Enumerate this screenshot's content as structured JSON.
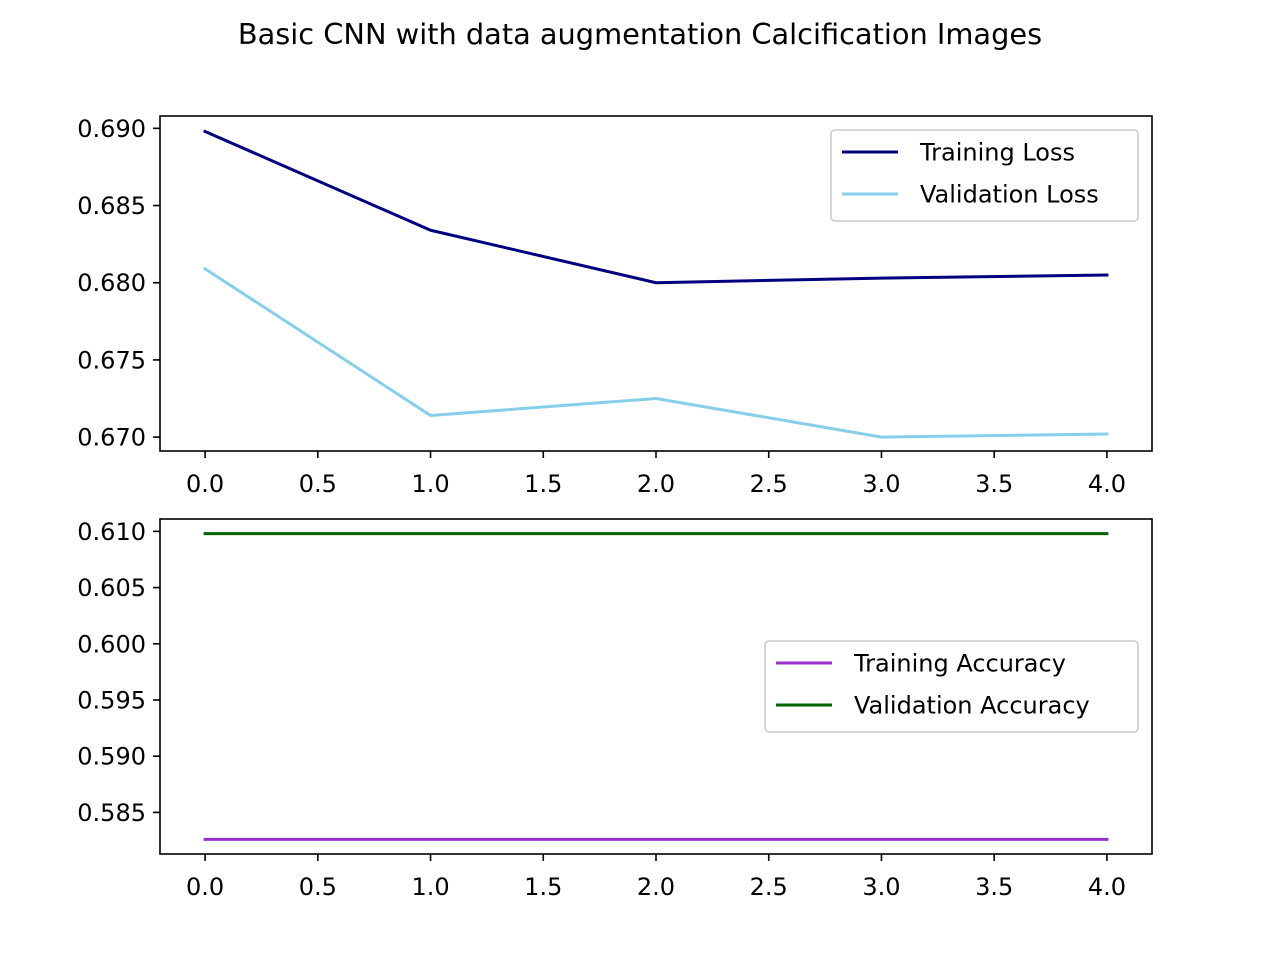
{
  "title": "Basic CNN with data augmentation Calcification Images",
  "chart_data": [
    {
      "type": "line",
      "x": [
        0,
        1,
        2,
        3,
        4
      ],
      "xlim": [
        -0.2,
        4.2
      ],
      "ylim": [
        0.6691,
        0.6908
      ],
      "xticks": [
        0.0,
        0.5,
        1.0,
        1.5,
        2.0,
        2.5,
        3.0,
        3.5,
        4.0
      ],
      "xtick_labels": [
        "0.0",
        "0.5",
        "1.0",
        "1.5",
        "2.0",
        "2.5",
        "3.0",
        "3.5",
        "4.0"
      ],
      "yticks": [
        0.67,
        0.675,
        0.68,
        0.685,
        0.69
      ],
      "ytick_labels": [
        "0.670",
        "0.675",
        "0.680",
        "0.685",
        "0.690"
      ],
      "legend_position": "upper right",
      "grid": false,
      "series": [
        {
          "name": "Training Loss",
          "color": "#000080",
          "values": [
            0.6898,
            0.6834,
            0.68,
            0.6803,
            0.6805
          ]
        },
        {
          "name": "Validation Loss",
          "color": "#87CEEB",
          "values": [
            0.6809,
            0.6714,
            0.6725,
            0.67,
            0.6702
          ]
        }
      ]
    },
    {
      "type": "line",
      "x": [
        0,
        1,
        2,
        3,
        4
      ],
      "xlim": [
        -0.2,
        4.2
      ],
      "ylim": [
        0.5813,
        0.6111
      ],
      "xticks": [
        0.0,
        0.5,
        1.0,
        1.5,
        2.0,
        2.5,
        3.0,
        3.5,
        4.0
      ],
      "xtick_labels": [
        "0.0",
        "0.5",
        "1.0",
        "1.5",
        "2.0",
        "2.5",
        "3.0",
        "3.5",
        "4.0"
      ],
      "yticks": [
        0.585,
        0.59,
        0.595,
        0.6,
        0.605,
        0.61
      ],
      "ytick_labels": [
        "0.585",
        "0.590",
        "0.595",
        "0.600",
        "0.605",
        "0.610"
      ],
      "legend_position": "center right",
      "grid": false,
      "series": [
        {
          "name": "Training Accuracy",
          "color": "#9932CC",
          "values": [
            0.5826,
            0.5826,
            0.5826,
            0.5826,
            0.5826
          ]
        },
        {
          "name": "Validation Accuracy",
          "color": "#006400",
          "values": [
            0.6098,
            0.6098,
            0.6098,
            0.6098,
            0.6098
          ]
        }
      ]
    }
  ]
}
